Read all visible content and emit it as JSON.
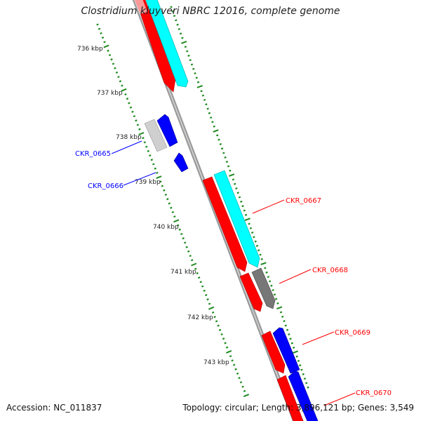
{
  "title": "Clostridium kluyveri NBRC 12016, complete genome",
  "footer": {
    "accession": "Accession: NC_011837",
    "summary": "Topology: circular; Length: 3,896,121 bp; Genes: 3,549"
  },
  "colors": {
    "backbone": "#9a9a9a",
    "tick_outer": "#1e8a1e",
    "tick_inner": "#1e8a1e",
    "forward_gene": "#ff0000",
    "reverse_gene": "#0000ff",
    "rna_forward": "#00ffff",
    "pseudo": "#666666",
    "pseudo_light": "#cfcfcf",
    "label_forward": "#ff0000",
    "label_reverse": "#0000ff"
  },
  "tick_labels": [
    "736 kbp",
    "737 kbp",
    "738 kbp",
    "739 kbp",
    "740 kbp",
    "741 kbp",
    "742 kbp",
    "743 kbp"
  ],
  "gene_labels": [
    {
      "name": "CKR_0665",
      "strand": "reverse"
    },
    {
      "name": "CKR_0666",
      "strand": "reverse"
    },
    {
      "name": "CKR_0667",
      "strand": "forward"
    },
    {
      "name": "CKR_0668",
      "strand": "forward"
    },
    {
      "name": "CKR_0669",
      "strand": "forward"
    },
    {
      "name": "CKR_0670",
      "strand": "forward"
    }
  ]
}
